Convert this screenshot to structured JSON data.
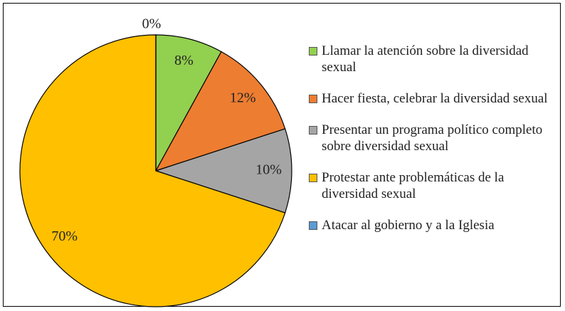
{
  "chart_data": {
    "type": "pie",
    "categories": [
      "Llamar la atención sobre la diversidad sexual",
      "Hacer fiesta, celebrar la diversidad sexual",
      "Presentar un programa político completo sobre diversidad sexual",
      "Protestar ante problemáticas de la diversidad sexual",
      "Atacar al gobierno y a la Iglesia"
    ],
    "values": [
      8,
      12,
      10,
      70,
      0
    ],
    "value_labels": [
      "8%",
      "12%",
      "10%",
      "70%",
      "0%"
    ],
    "colors": [
      "#92d050",
      "#ed7d31",
      "#a5a5a5",
      "#ffc000",
      "#5b9bd5"
    ],
    "legend": "right"
  }
}
